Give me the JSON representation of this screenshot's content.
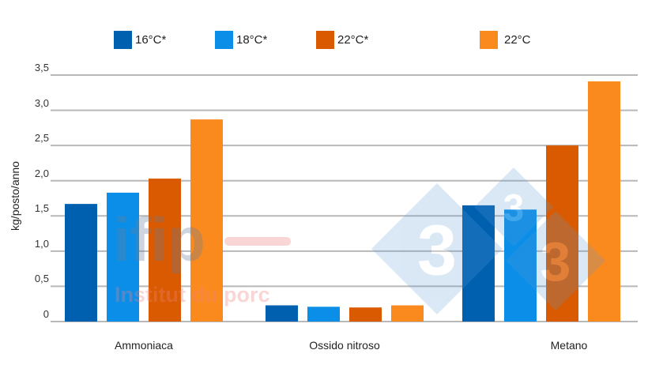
{
  "chart_data": {
    "type": "bar",
    "title": "",
    "xlabel": "",
    "ylabel": "kg/posto/anno",
    "ylim": [
      0,
      3.5
    ],
    "yticks": [
      "0",
      "0,5",
      "1,0",
      "1,5",
      "2,0",
      "2,5",
      "3,0",
      "3,5"
    ],
    "grid": true,
    "legend_position": "top",
    "categories": [
      "Ammoniaca",
      "Ossido nitroso",
      "Metano"
    ],
    "series": [
      {
        "name": "16°C*",
        "color": "#0060b0",
        "values": [
          1.67,
          0.23,
          1.65
        ]
      },
      {
        "name": "18°C*",
        "color": "#0a8ee8",
        "values": [
          1.83,
          0.21,
          1.59
        ]
      },
      {
        "name": "22°C*",
        "color": "#d95a00",
        "values": [
          2.03,
          0.2,
          2.5
        ]
      },
      {
        "name": "22°C",
        "color": "#fb8a1e",
        "values": [
          2.87,
          0.23,
          3.41
        ]
      }
    ]
  },
  "watermarks": {
    "ifip_logo": "ifip",
    "ifip_subtitle": "Institut du porc",
    "three_three_three_glyph": "3"
  },
  "colors": {
    "grid": "#b8b8b8",
    "text": "#222222"
  }
}
